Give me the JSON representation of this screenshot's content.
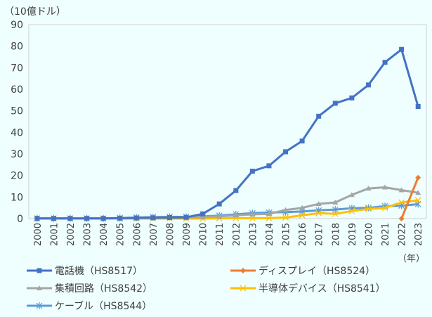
{
  "chart_data": {
    "type": "line",
    "title": "",
    "ylabel": "（10億ドル）",
    "xlabel": "（年）",
    "ylim": [
      0,
      90
    ],
    "yticks": [
      0,
      10,
      20,
      30,
      40,
      50,
      60,
      70,
      80,
      90
    ],
    "grid": false,
    "legend_position": "bottom",
    "x": [
      "2000",
      "2001",
      "2002",
      "2003",
      "2004",
      "2005",
      "2006",
      "2007",
      "2008",
      "2009",
      "2010",
      "2011",
      "2012",
      "2013",
      "2014",
      "2015",
      "2016",
      "2017",
      "2018",
      "2019",
      "2020",
      "2021",
      "2022",
      "2023"
    ],
    "series": [
      {
        "name": "電話機（HS8517）",
        "color": "#4472c4",
        "marker": "square",
        "values": [
          0.1,
          0.1,
          0.1,
          0.1,
          0.1,
          0.2,
          0.3,
          0.4,
          0.5,
          0.6,
          2.2,
          6.8,
          13,
          22,
          24.5,
          31,
          36,
          47.5,
          53.5,
          56,
          62,
          72.5,
          78.5,
          52
        ]
      },
      {
        "name": "ディスプレイ（HS8524）",
        "color": "#ed7d31",
        "marker": "diamond",
        "values": [
          null,
          null,
          null,
          null,
          null,
          null,
          null,
          null,
          null,
          null,
          null,
          null,
          null,
          null,
          null,
          null,
          null,
          null,
          null,
          null,
          null,
          null,
          0,
          19
        ]
      },
      {
        "name": "集積回路（HS8542）",
        "color": "#a5a5a5",
        "marker": "triangle",
        "values": [
          0.1,
          0.1,
          0.1,
          0.1,
          0.1,
          0.2,
          0.3,
          0.4,
          0.5,
          0.6,
          0.8,
          1.0,
          1.5,
          2.0,
          2.2,
          4.0,
          5.0,
          6.8,
          7.5,
          11,
          14,
          14.5,
          13.2,
          12
        ]
      },
      {
        "name": "半導体デバイス（HS8541）",
        "color": "#ffc000",
        "marker": "x",
        "values": [
          0,
          0,
          0,
          0,
          0,
          0,
          0,
          0,
          0,
          0,
          0,
          0.1,
          0.2,
          0.2,
          0.2,
          0.5,
          1.5,
          2.5,
          2.2,
          3.5,
          4.5,
          5,
          7.5,
          8.5
        ]
      },
      {
        "name": "ケーブル（HS8544）",
        "color": "#5b9bd5",
        "marker": "star",
        "values": [
          0.1,
          0.1,
          0.1,
          0.1,
          0.1,
          0.3,
          0.5,
          0.7,
          0.8,
          0.8,
          1.0,
          1.4,
          2.0,
          2.5,
          2.8,
          3.0,
          3.3,
          3.8,
          4.2,
          4.8,
          5.0,
          5.8,
          6.0,
          6.7
        ]
      }
    ]
  }
}
